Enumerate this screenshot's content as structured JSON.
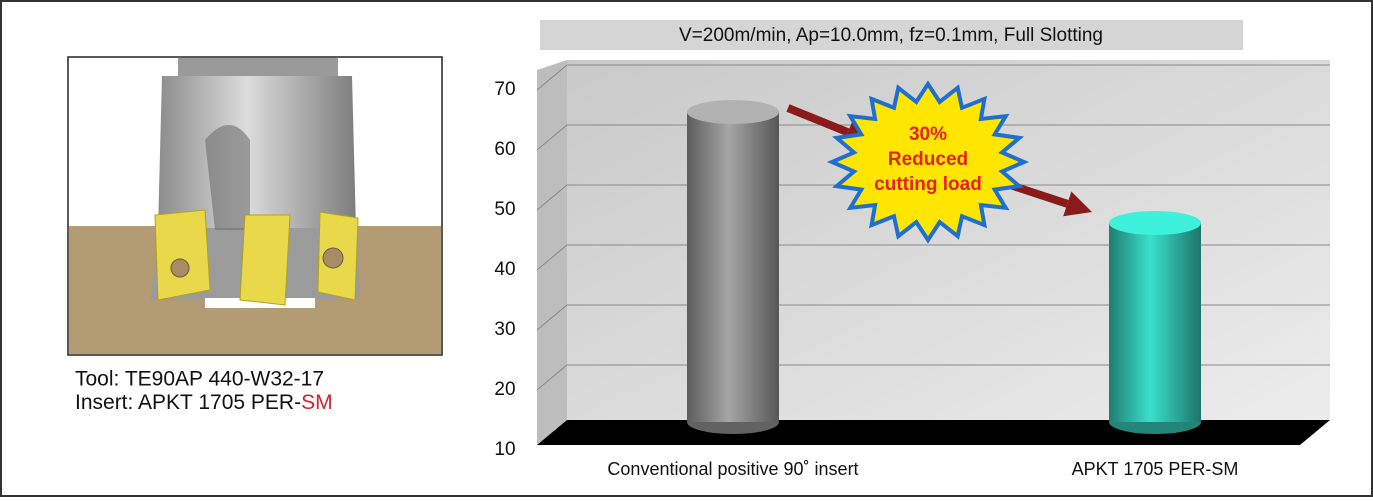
{
  "tool_info": {
    "tool": "Tool: TE90AP 440-W32-17",
    "insert_prefix": "Insert: APKT 1705 PER-",
    "insert_suffix": "SM"
  },
  "chart_data": {
    "type": "cylinder",
    "subtitle": "V=200m/min, Ap=10.0mm, fz=0.1mm,  Full Slotting",
    "categories": [
      "Conventional positive 90˚ insert",
      "APKT 1705 PER-SM"
    ],
    "values": [
      64,
      45.5
    ],
    "colors": [
      "#7b7b7b",
      "#2aa697"
    ],
    "ylim": [
      10,
      70
    ],
    "yticks": [
      10,
      20,
      30,
      40,
      50,
      60,
      70
    ],
    "grid": true,
    "annotation": [
      "30%",
      "Reduced",
      "cutting load"
    ]
  }
}
